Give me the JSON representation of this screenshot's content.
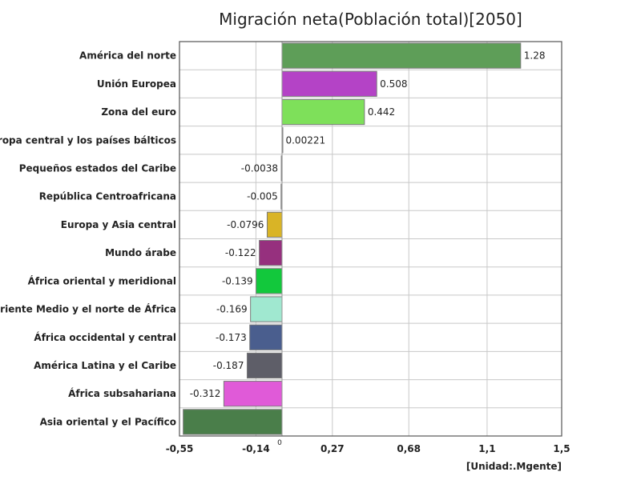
{
  "chart_data": {
    "type": "bar",
    "orientation": "horizontal",
    "title": "Migración neta(Población total)[2050]",
    "unit_label": "[Unidad:.Mgente]",
    "xlim": [
      -0.55,
      1.5
    ],
    "grid": true,
    "legend": "none",
    "x_ticks": [
      {
        "value": -0.55,
        "label": "-0,55"
      },
      {
        "value": -0.14,
        "label": "-0,14"
      },
      {
        "value": 0,
        "label": "0"
      },
      {
        "value": 0.27,
        "label": "0,27"
      },
      {
        "value": 0.68,
        "label": "0,68"
      },
      {
        "value": 1.1,
        "label": "1,1"
      },
      {
        "value": 1.5,
        "label": "1,5"
      }
    ],
    "categories": [
      "América del norte",
      "Unión Europea",
      "Zona del euro",
      "Europa central y los países bálticos",
      "Pequeños estados del Caribe",
      "República Centroafricana",
      "Europa y Asia central",
      "Mundo árabe",
      "África oriental y meridional",
      "Oriente Medio y el norte de África",
      "África occidental y central",
      "América Latina y el Caribe",
      "África subsahariana",
      "Asia oriental y el Pacífico"
    ],
    "values": [
      1.28,
      0.508,
      0.442,
      0.00221,
      -0.0038,
      -0.005,
      -0.0796,
      -0.122,
      -0.139,
      -0.169,
      -0.173,
      -0.187,
      -0.312,
      -0.53
    ],
    "value_labels": [
      "1.28",
      "0.508",
      "0.442",
      "0.00221",
      "-0.0038",
      "-0.005",
      "-0.0796",
      "-0.122",
      "-0.139",
      "-0.169",
      "-0.173",
      "-0.187",
      "-0.312",
      ""
    ],
    "colors": [
      "#5e9e58",
      "#b443c6",
      "#7ee05a",
      "#6aa06a",
      "#9a9a9a",
      "#9a9a9a",
      "#d9b426",
      "#96307e",
      "#12c83c",
      "#a0e8d0",
      "#4a5e8e",
      "#5e5e68",
      "#e05ad8",
      "#4a7e4a"
    ]
  }
}
